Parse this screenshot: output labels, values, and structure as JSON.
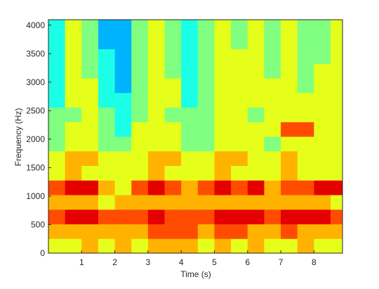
{
  "chart_data": {
    "type": "heatmap",
    "xlabel": "Time (s)",
    "ylabel": "Frequency (Hz)",
    "xlim": [
      0,
      8.86
    ],
    "ylim": [
      0,
      4096
    ],
    "xticks": [
      1,
      2,
      3,
      4,
      5,
      6,
      7,
      8
    ],
    "yticks": [
      0,
      500,
      1000,
      1500,
      2000,
      2500,
      3000,
      3500,
      4000
    ],
    "xbins": [
      0,
      0.5,
      1,
      1.5,
      2,
      2.5,
      3,
      3.5,
      4,
      4.5,
      5,
      5.5,
      6,
      6.5,
      7,
      7.5,
      8,
      8.5,
      8.86
    ],
    "ybins": [
      0,
      256,
      512,
      768,
      1024,
      1280,
      1536,
      1792,
      2048,
      2304,
      2560,
      2816,
      3072,
      3328,
      3584,
      3840,
      4096
    ],
    "colormap": "jet",
    "zlim": [
      0,
      10
    ],
    "z": [
      [
        6,
        6,
        7,
        6,
        7,
        6,
        7,
        7,
        7,
        6,
        7,
        6,
        7,
        6,
        6,
        7,
        6,
        6
      ],
      [
        7,
        7,
        7,
        7,
        7,
        7,
        8,
        8,
        8,
        7,
        8,
        8,
        7,
        7,
        8,
        7,
        7,
        7
      ],
      [
        8,
        9,
        9,
        8,
        8,
        8,
        9,
        8,
        8,
        8,
        9,
        9,
        9,
        8,
        9,
        9,
        9,
        8
      ],
      [
        7,
        7,
        7,
        6,
        7,
        7,
        7,
        7,
        7,
        7,
        7,
        7,
        7,
        7,
        7,
        7,
        7,
        6
      ],
      [
        8,
        9,
        9,
        7,
        6,
        8,
        9,
        8,
        7,
        8,
        9,
        8,
        9,
        7,
        8,
        8,
        9,
        9
      ],
      [
        6,
        7,
        6,
        6,
        6,
        6,
        7,
        6,
        6,
        6,
        7,
        6,
        6,
        6,
        7,
        6,
        6,
        6
      ],
      [
        6,
        7,
        7,
        6,
        6,
        6,
        7,
        7,
        6,
        6,
        7,
        7,
        6,
        6,
        7,
        6,
        6,
        6
      ],
      [
        5,
        6,
        6,
        5,
        5,
        6,
        6,
        6,
        5,
        5,
        6,
        6,
        6,
        5,
        6,
        6,
        6,
        6
      ],
      [
        5,
        6,
        6,
        5,
        4,
        6,
        6,
        6,
        5,
        5,
        6,
        6,
        6,
        6,
        8,
        8,
        6,
        6
      ],
      [
        5,
        5,
        6,
        5,
        4,
        5,
        6,
        5,
        5,
        5,
        6,
        6,
        5,
        6,
        6,
        6,
        6,
        6
      ],
      [
        4,
        6,
        6,
        4,
        4,
        5,
        6,
        6,
        4,
        5,
        6,
        6,
        6,
        6,
        6,
        6,
        6,
        6
      ],
      [
        4,
        6,
        6,
        4,
        3,
        5,
        6,
        6,
        4,
        5,
        6,
        6,
        6,
        6,
        6,
        5,
        6,
        6
      ],
      [
        4,
        6,
        5,
        4,
        3,
        5,
        6,
        5,
        4,
        5,
        6,
        6,
        6,
        5,
        6,
        5,
        6,
        6
      ],
      [
        4,
        6,
        5,
        4,
        3,
        5,
        6,
        5,
        4,
        5,
        6,
        6,
        6,
        5,
        6,
        5,
        5,
        6
      ],
      [
        4,
        6,
        5,
        3,
        3,
        5,
        6,
        5,
        4,
        5,
        6,
        5,
        6,
        5,
        6,
        5,
        5,
        6
      ],
      [
        4,
        6,
        5,
        3,
        3,
        5,
        6,
        5,
        4,
        5,
        6,
        5,
        6,
        5,
        6,
        5,
        5,
        6
      ]
    ]
  }
}
